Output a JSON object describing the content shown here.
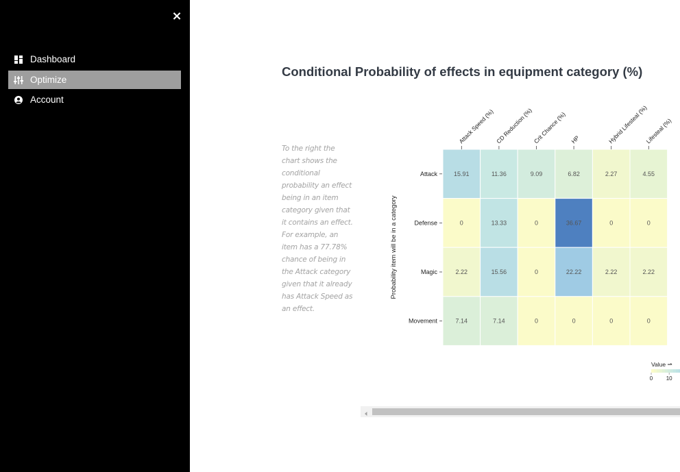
{
  "sidebar": {
    "close_label": "×",
    "items": [
      {
        "label": "Dashboard",
        "icon": "dashboard-icon",
        "active": false
      },
      {
        "label": "Optimize",
        "icon": "sliders-icon",
        "active": true
      },
      {
        "label": "Account",
        "icon": "user-icon",
        "active": false
      }
    ]
  },
  "main": {
    "title": "Conditional Probability of effects in equipment category (%)",
    "description": "To the right the chart shows the conditional probability an effect being in an item category given that it contains an effect. For example, an item has a 77.78% chance of being in the Attack category given that it already has Attack Speed as an effect."
  },
  "chart_data": {
    "type": "heatmap",
    "title": "",
    "ylabel": "Probability item will be in a category",
    "x": [
      "Attack Speed (%)",
      "CD Reduction (%)",
      "Crit Chance (%)",
      "HP",
      "Hybrid Lifesteal (%)",
      "Lifesteal (%)"
    ],
    "y": [
      "Attack",
      "Defense",
      "Magic",
      "Movement"
    ],
    "values": [
      [
        15.91,
        11.36,
        9.09,
        6.82,
        2.27,
        4.55
      ],
      [
        0,
        13.33,
        0,
        36.67,
        0,
        0
      ],
      [
        2.22,
        15.56,
        0,
        22.22,
        2.22,
        2.22
      ],
      [
        7.14,
        7.14,
        0,
        0,
        0,
        0
      ]
    ],
    "legend": {
      "title": "Value",
      "ticks": [
        0,
        10
      ],
      "placement": "bottom-right"
    },
    "colorscale": [
      "#fbfbc9",
      "#c7e8e4",
      "#a4d0e6",
      "#4e80c0"
    ]
  },
  "scrollbar": {
    "arrow_icon": "scroll-left-icon"
  }
}
